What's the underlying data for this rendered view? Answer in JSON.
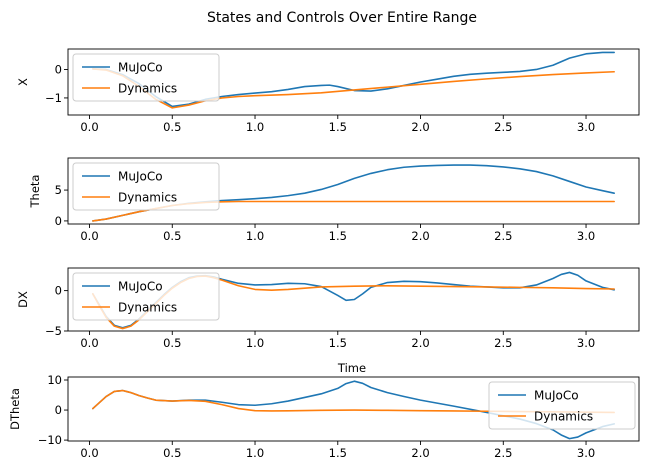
{
  "figure": {
    "title": "States and Controls Over Entire Range",
    "xlabel": "Time",
    "legend_labels": [
      "MuJoCo",
      "Dynamics"
    ],
    "colors": {
      "MuJoCo": "#1f77b4",
      "Dynamics": "#ff7f0e"
    }
  },
  "chart_data": [
    {
      "type": "line",
      "ylabel": "X",
      "xlim": [
        -0.13,
        3.32
      ],
      "ylim": [
        -1.6,
        0.72
      ],
      "xticks": [
        0.0,
        0.5,
        1.0,
        1.5,
        2.0,
        2.5,
        3.0
      ],
      "yticks": [
        -1,
        0
      ],
      "legend": "upper left",
      "series": [
        {
          "name": "MuJoCo",
          "x": [
            0.02,
            0.1,
            0.2,
            0.3,
            0.4,
            0.5,
            0.6,
            0.7,
            0.8,
            0.9,
            1.0,
            1.1,
            1.2,
            1.3,
            1.4,
            1.45,
            1.5,
            1.6,
            1.7,
            1.8,
            1.9,
            2.0,
            2.1,
            2.2,
            2.3,
            2.4,
            2.5,
            2.6,
            2.7,
            2.8,
            2.9,
            3.0,
            3.1,
            3.17
          ],
          "values": [
            0.02,
            0.0,
            -0.18,
            -0.5,
            -0.95,
            -1.3,
            -1.22,
            -1.05,
            -0.95,
            -0.88,
            -0.83,
            -0.78,
            -0.7,
            -0.6,
            -0.56,
            -0.55,
            -0.6,
            -0.74,
            -0.76,
            -0.68,
            -0.56,
            -0.44,
            -0.34,
            -0.24,
            -0.17,
            -0.13,
            -0.1,
            -0.07,
            0.0,
            0.15,
            0.4,
            0.55,
            0.6,
            0.6
          ]
        },
        {
          "name": "Dynamics",
          "x": [
            0.02,
            0.1,
            0.2,
            0.3,
            0.4,
            0.5,
            0.6,
            0.7,
            0.8,
            0.9,
            1.0,
            1.2,
            1.4,
            1.6,
            1.8,
            2.0,
            2.2,
            2.4,
            2.6,
            2.8,
            3.0,
            3.17
          ],
          "values": [
            0.02,
            -0.02,
            -0.22,
            -0.6,
            -1.05,
            -1.35,
            -1.25,
            -1.1,
            -1.0,
            -0.95,
            -0.92,
            -0.88,
            -0.82,
            -0.72,
            -0.62,
            -0.52,
            -0.42,
            -0.33,
            -0.25,
            -0.18,
            -0.12,
            -0.08
          ]
        }
      ]
    },
    {
      "type": "line",
      "ylabel": "Theta",
      "xlim": [
        -0.13,
        3.32
      ],
      "ylim": [
        -0.5,
        10.2
      ],
      "xticks": [
        0.0,
        0.5,
        1.0,
        1.5,
        2.0,
        2.5,
        3.0
      ],
      "yticks": [
        0,
        5
      ],
      "legend": "upper left",
      "series": [
        {
          "name": "MuJoCo",
          "x": [
            0.02,
            0.1,
            0.2,
            0.3,
            0.4,
            0.5,
            0.6,
            0.7,
            0.8,
            0.9,
            1.0,
            1.1,
            1.2,
            1.3,
            1.4,
            1.5,
            1.6,
            1.7,
            1.8,
            1.9,
            2.0,
            2.1,
            2.2,
            2.3,
            2.4,
            2.5,
            2.6,
            2.7,
            2.8,
            2.9,
            3.0,
            3.1,
            3.17
          ],
          "values": [
            0.0,
            0.3,
            0.9,
            1.5,
            2.0,
            2.5,
            2.85,
            3.1,
            3.3,
            3.45,
            3.6,
            3.8,
            4.1,
            4.5,
            5.1,
            5.9,
            6.9,
            7.7,
            8.3,
            8.7,
            8.9,
            9.0,
            9.05,
            9.05,
            8.95,
            8.75,
            8.45,
            8.0,
            7.3,
            6.4,
            5.5,
            4.9,
            4.5
          ]
        },
        {
          "name": "Dynamics",
          "x": [
            0.02,
            0.1,
            0.2,
            0.3,
            0.4,
            0.5,
            0.6,
            0.7,
            0.8,
            0.9,
            1.0,
            1.5,
            2.0,
            2.5,
            3.0,
            3.17
          ],
          "values": [
            0.0,
            0.3,
            0.9,
            1.5,
            2.0,
            2.5,
            2.8,
            3.0,
            3.1,
            3.15,
            3.15,
            3.15,
            3.15,
            3.15,
            3.15,
            3.15
          ]
        }
      ]
    },
    {
      "type": "line",
      "ylabel": "DX",
      "xlim": [
        -0.13,
        3.32
      ],
      "ylim": [
        -5.0,
        2.8
      ],
      "xticks": [
        0.0,
        0.5,
        1.0,
        1.5,
        2.0,
        2.5,
        3.0
      ],
      "yticks": [
        -5,
        0
      ],
      "legend": "upper left",
      "series": [
        {
          "name": "MuJoCo",
          "x": [
            0.02,
            0.06,
            0.1,
            0.15,
            0.2,
            0.25,
            0.3,
            0.35,
            0.4,
            0.45,
            0.5,
            0.55,
            0.6,
            0.65,
            0.7,
            0.75,
            0.8,
            0.9,
            1.0,
            1.1,
            1.2,
            1.3,
            1.4,
            1.5,
            1.55,
            1.6,
            1.65,
            1.7,
            1.8,
            1.9,
            2.0,
            2.1,
            2.2,
            2.3,
            2.4,
            2.5,
            2.6,
            2.7,
            2.8,
            2.85,
            2.9,
            2.95,
            3.0,
            3.1,
            3.17
          ],
          "values": [
            -0.4,
            -1.8,
            -3.2,
            -4.3,
            -4.6,
            -4.3,
            -3.5,
            -2.5,
            -1.5,
            -0.5,
            0.4,
            1.1,
            1.6,
            1.8,
            1.85,
            1.7,
            1.4,
            0.9,
            0.7,
            0.75,
            0.9,
            0.85,
            0.5,
            -0.6,
            -1.2,
            -1.1,
            -0.4,
            0.4,
            1.0,
            1.15,
            1.1,
            0.95,
            0.75,
            0.55,
            0.45,
            0.35,
            0.35,
            0.7,
            1.5,
            2.0,
            2.25,
            1.9,
            1.2,
            0.4,
            0.1
          ]
        },
        {
          "name": "Dynamics",
          "x": [
            0.02,
            0.06,
            0.1,
            0.15,
            0.2,
            0.25,
            0.3,
            0.35,
            0.4,
            0.45,
            0.5,
            0.55,
            0.6,
            0.65,
            0.7,
            0.75,
            0.8,
            0.9,
            1.0,
            1.1,
            1.2,
            1.3,
            1.4,
            1.5,
            1.6,
            1.8,
            2.0,
            2.2,
            2.4,
            2.6,
            2.8,
            3.0,
            3.17
          ],
          "values": [
            -0.4,
            -1.9,
            -3.3,
            -4.4,
            -4.7,
            -4.4,
            -3.6,
            -2.6,
            -1.6,
            -0.6,
            0.3,
            1.0,
            1.5,
            1.75,
            1.8,
            1.6,
            1.3,
            0.6,
            0.15,
            0.05,
            0.15,
            0.3,
            0.45,
            0.5,
            0.55,
            0.6,
            0.55,
            0.5,
            0.45,
            0.4,
            0.35,
            0.25,
            0.2
          ]
        }
      ]
    },
    {
      "type": "line",
      "ylabel": "DTheta",
      "xlim": [
        -0.13,
        3.32
      ],
      "ylim": [
        -10.3,
        11.0
      ],
      "xticks": [
        0.0,
        0.5,
        1.0,
        1.5,
        2.0,
        2.5,
        3.0
      ],
      "yticks": [
        -10,
        0,
        10
      ],
      "legend": "upper right",
      "series": [
        {
          "name": "MuJoCo",
          "x": [
            0.02,
            0.06,
            0.1,
            0.15,
            0.2,
            0.25,
            0.3,
            0.35,
            0.4,
            0.5,
            0.6,
            0.7,
            0.8,
            0.9,
            1.0,
            1.1,
            1.2,
            1.3,
            1.4,
            1.5,
            1.55,
            1.6,
            1.65,
            1.7,
            1.8,
            1.9,
            2.0,
            2.2,
            2.4,
            2.6,
            2.7,
            2.8,
            2.85,
            2.9,
            2.95,
            3.0,
            3.1,
            3.17
          ],
          "values": [
            0.5,
            2.5,
            4.5,
            6.2,
            6.5,
            5.8,
            4.8,
            4.0,
            3.3,
            3.0,
            3.3,
            3.3,
            2.6,
            1.8,
            1.6,
            2.1,
            3.0,
            4.2,
            5.4,
            7.2,
            8.8,
            9.6,
            8.9,
            7.5,
            5.8,
            4.5,
            3.3,
            1.3,
            -0.8,
            -3.0,
            -4.5,
            -6.6,
            -8.3,
            -9.5,
            -9.0,
            -7.6,
            -5.5,
            -4.6
          ]
        },
        {
          "name": "Dynamics",
          "x": [
            0.02,
            0.06,
            0.1,
            0.15,
            0.2,
            0.25,
            0.3,
            0.35,
            0.4,
            0.5,
            0.6,
            0.7,
            0.8,
            0.9,
            1.0,
            1.1,
            1.2,
            1.4,
            1.6,
            1.8,
            2.0,
            2.2,
            2.4,
            2.6,
            2.8,
            3.0,
            3.17
          ],
          "values": [
            0.5,
            2.5,
            4.5,
            6.2,
            6.5,
            5.8,
            4.8,
            4.0,
            3.3,
            3.0,
            3.2,
            2.9,
            1.8,
            0.5,
            -0.2,
            -0.3,
            -0.25,
            -0.1,
            0.0,
            -0.1,
            -0.2,
            -0.3,
            -0.4,
            -0.5,
            -0.6,
            -0.7,
            -0.8
          ]
        }
      ]
    }
  ]
}
